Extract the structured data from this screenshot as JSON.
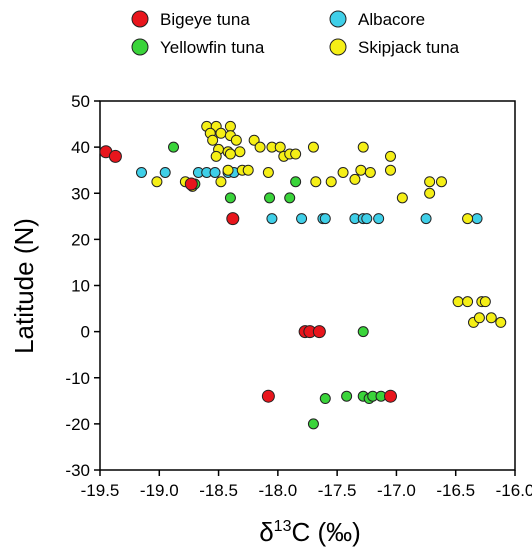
{
  "chart_data": {
    "type": "scatter",
    "xlabel_prefix": "δ",
    "xlabel_sup": "13",
    "xlabel_suffix": "C (‰)",
    "ylabel": "Latitude (N)",
    "xlim": [
      -19.5,
      -16.0
    ],
    "ylim": [
      -30,
      50
    ],
    "x_ticks": [
      -19.5,
      -19.0,
      -18.5,
      -18.0,
      -17.5,
      -17.0,
      -16.5,
      -16.0
    ],
    "x_tick_labels": [
      "-19.5",
      "-19.0",
      "-18.5",
      "-18.0",
      "-17.5",
      "-17.0",
      "-16.5",
      "-16.0"
    ],
    "y_ticks": [
      -30,
      -20,
      -10,
      0,
      10,
      20,
      30,
      40,
      50
    ],
    "y_tick_labels": [
      "-30",
      "-20",
      "-10",
      "0",
      "10",
      "20",
      "30",
      "40",
      "50"
    ],
    "grid": false,
    "legend_position": "top",
    "series": [
      {
        "name": "Bigeye tuna",
        "color": "#e8151c",
        "points": [
          [
            -19.45,
            39
          ],
          [
            -19.37,
            38
          ],
          [
            -18.73,
            32
          ],
          [
            -18.38,
            24.5
          ],
          [
            -17.77,
            0
          ],
          [
            -17.73,
            0
          ],
          [
            -17.65,
            0
          ],
          [
            -18.08,
            -14
          ],
          [
            -17.05,
            -14
          ]
        ]
      },
      {
        "name": "Albacore",
        "color": "#3fcfe8",
        "points": [
          [
            -19.15,
            34.5
          ],
          [
            -18.95,
            34.5
          ],
          [
            -18.67,
            34.5
          ],
          [
            -18.6,
            34.5
          ],
          [
            -18.53,
            34.5
          ],
          [
            -18.42,
            34.5
          ],
          [
            -18.37,
            34.5
          ],
          [
            -18.05,
            24.5
          ],
          [
            -17.8,
            24.5
          ],
          [
            -17.62,
            24.5
          ],
          [
            -17.6,
            24.5
          ],
          [
            -17.35,
            24.5
          ],
          [
            -17.28,
            24.5
          ],
          [
            -17.25,
            24.5
          ],
          [
            -17.15,
            24.5
          ],
          [
            -16.75,
            24.5
          ],
          [
            -16.32,
            24.5
          ]
        ]
      },
      {
        "name": "Yellowfin tuna",
        "color": "#3ad43a",
        "points": [
          [
            -18.88,
            40
          ],
          [
            -18.7,
            32
          ],
          [
            -18.4,
            29
          ],
          [
            -18.07,
            29
          ],
          [
            -17.9,
            29
          ],
          [
            -17.85,
            32.5
          ],
          [
            -17.28,
            0
          ],
          [
            -17.7,
            -20
          ],
          [
            -17.6,
            -14.5
          ],
          [
            -17.42,
            -14
          ],
          [
            -17.28,
            -14
          ],
          [
            -17.23,
            -14.5
          ],
          [
            -17.2,
            -14
          ],
          [
            -17.13,
            -14
          ]
        ]
      },
      {
        "name": "Skipjack tuna",
        "color": "#f5ef16",
        "points": [
          [
            -19.02,
            32.5
          ],
          [
            -18.78,
            32.5
          ],
          [
            -18.72,
            31.5
          ],
          [
            -18.48,
            32.5
          ],
          [
            -18.42,
            35
          ],
          [
            -18.6,
            44.5
          ],
          [
            -18.52,
            44.5
          ],
          [
            -18.4,
            44.5
          ],
          [
            -18.57,
            43
          ],
          [
            -18.48,
            43
          ],
          [
            -18.4,
            42.5
          ],
          [
            -18.55,
            41.5
          ],
          [
            -18.35,
            41.5
          ],
          [
            -18.5,
            39.5
          ],
          [
            -18.42,
            39
          ],
          [
            -18.32,
            39
          ],
          [
            -18.52,
            38
          ],
          [
            -18.4,
            38.5
          ],
          [
            -18.3,
            35
          ],
          [
            -18.25,
            35
          ],
          [
            -18.2,
            41.5
          ],
          [
            -18.15,
            40
          ],
          [
            -18.05,
            40
          ],
          [
            -17.98,
            40
          ],
          [
            -17.95,
            38
          ],
          [
            -17.9,
            38.5
          ],
          [
            -17.85,
            38.5
          ],
          [
            -18.08,
            34.5
          ],
          [
            -17.7,
            40
          ],
          [
            -17.68,
            32.5
          ],
          [
            -17.55,
            32.5
          ],
          [
            -17.45,
            34.5
          ],
          [
            -17.35,
            33
          ],
          [
            -17.3,
            35
          ],
          [
            -17.28,
            40
          ],
          [
            -17.22,
            34.5
          ],
          [
            -17.05,
            38
          ],
          [
            -17.05,
            35
          ],
          [
            -16.95,
            29
          ],
          [
            -16.72,
            30
          ],
          [
            -16.72,
            32.5
          ],
          [
            -16.62,
            32.5
          ],
          [
            -16.4,
            24.5
          ],
          [
            -16.48,
            6.5
          ],
          [
            -16.4,
            6.5
          ],
          [
            -16.28,
            6.5
          ],
          [
            -16.25,
            6.5
          ],
          [
            -16.35,
            2
          ],
          [
            -16.3,
            3
          ],
          [
            -16.2,
            3
          ],
          [
            -16.12,
            2
          ]
        ]
      }
    ]
  }
}
